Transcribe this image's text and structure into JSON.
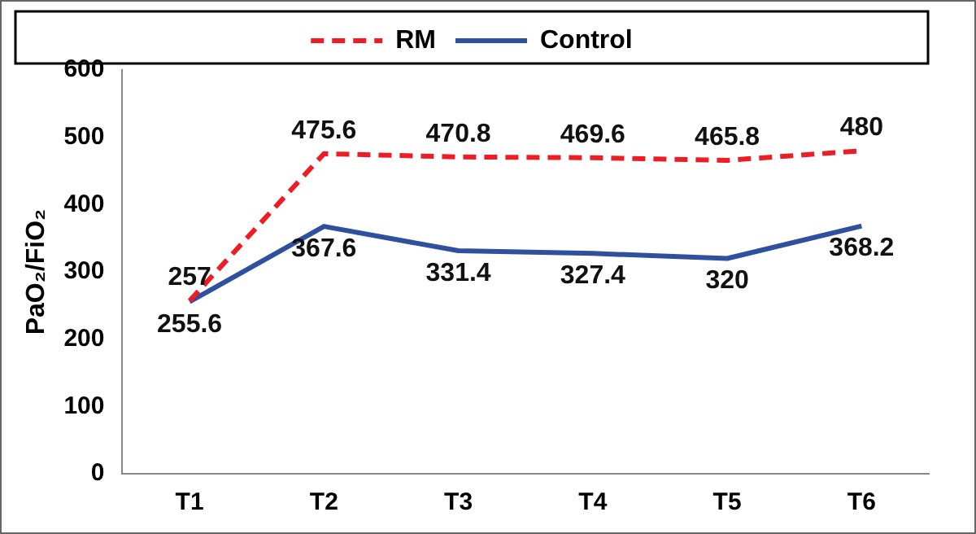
{
  "chart_data": {
    "type": "line",
    "ylabel": "PaO₂/FiO₂",
    "categories": [
      "T1",
      "T2",
      "T3",
      "T4",
      "T5",
      "T6"
    ],
    "series": [
      {
        "name": "RM",
        "color": "#ee1c25",
        "values": [
          257,
          475.6,
          470.8,
          469.6,
          465.8,
          480
        ],
        "line_style": "dashed"
      },
      {
        "name": "Control",
        "color": "#2f4f9f",
        "values": [
          255.6,
          367.6,
          331.4,
          327.4,
          320,
          368.2
        ],
        "line_style": "solid"
      }
    ],
    "ylim": [
      0,
      600
    ],
    "yticks": [
      0,
      100,
      200,
      300,
      400,
      500,
      600
    ],
    "grid": false,
    "legend": "top",
    "marker": "none",
    "data_labels": true
  }
}
